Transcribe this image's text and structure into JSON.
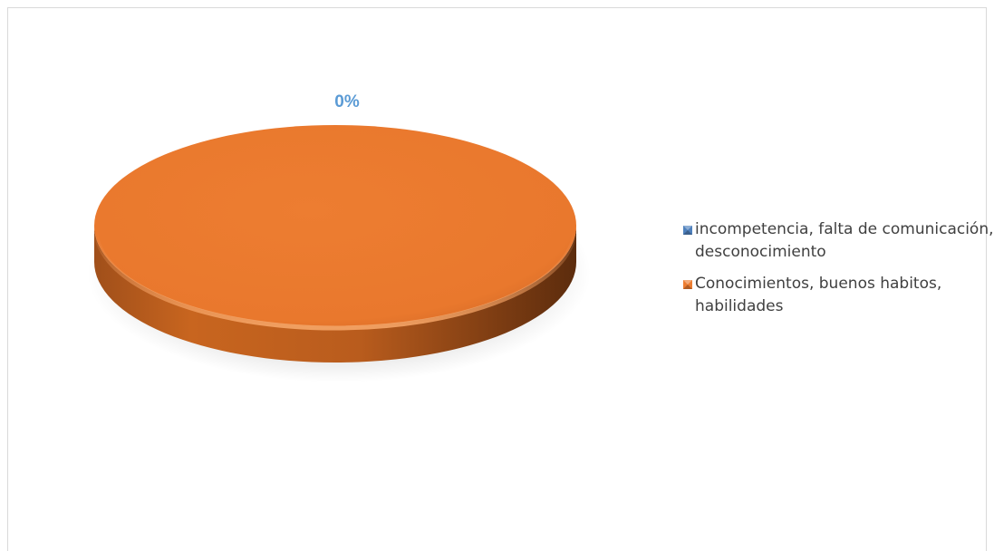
{
  "chart_data": {
    "type": "pie",
    "style": "3d",
    "title": "",
    "legend_position": "right",
    "categories": [
      "incompetencia, falta de comunicación, desconocimiento",
      "Conocimientos, buenos habitos, habilidades"
    ],
    "values": [
      0,
      100
    ],
    "colors": [
      "#4f81bd",
      "#ed7d31"
    ],
    "data_labels": [
      "0%",
      ""
    ],
    "data_label_color": "#5b9bd5"
  }
}
